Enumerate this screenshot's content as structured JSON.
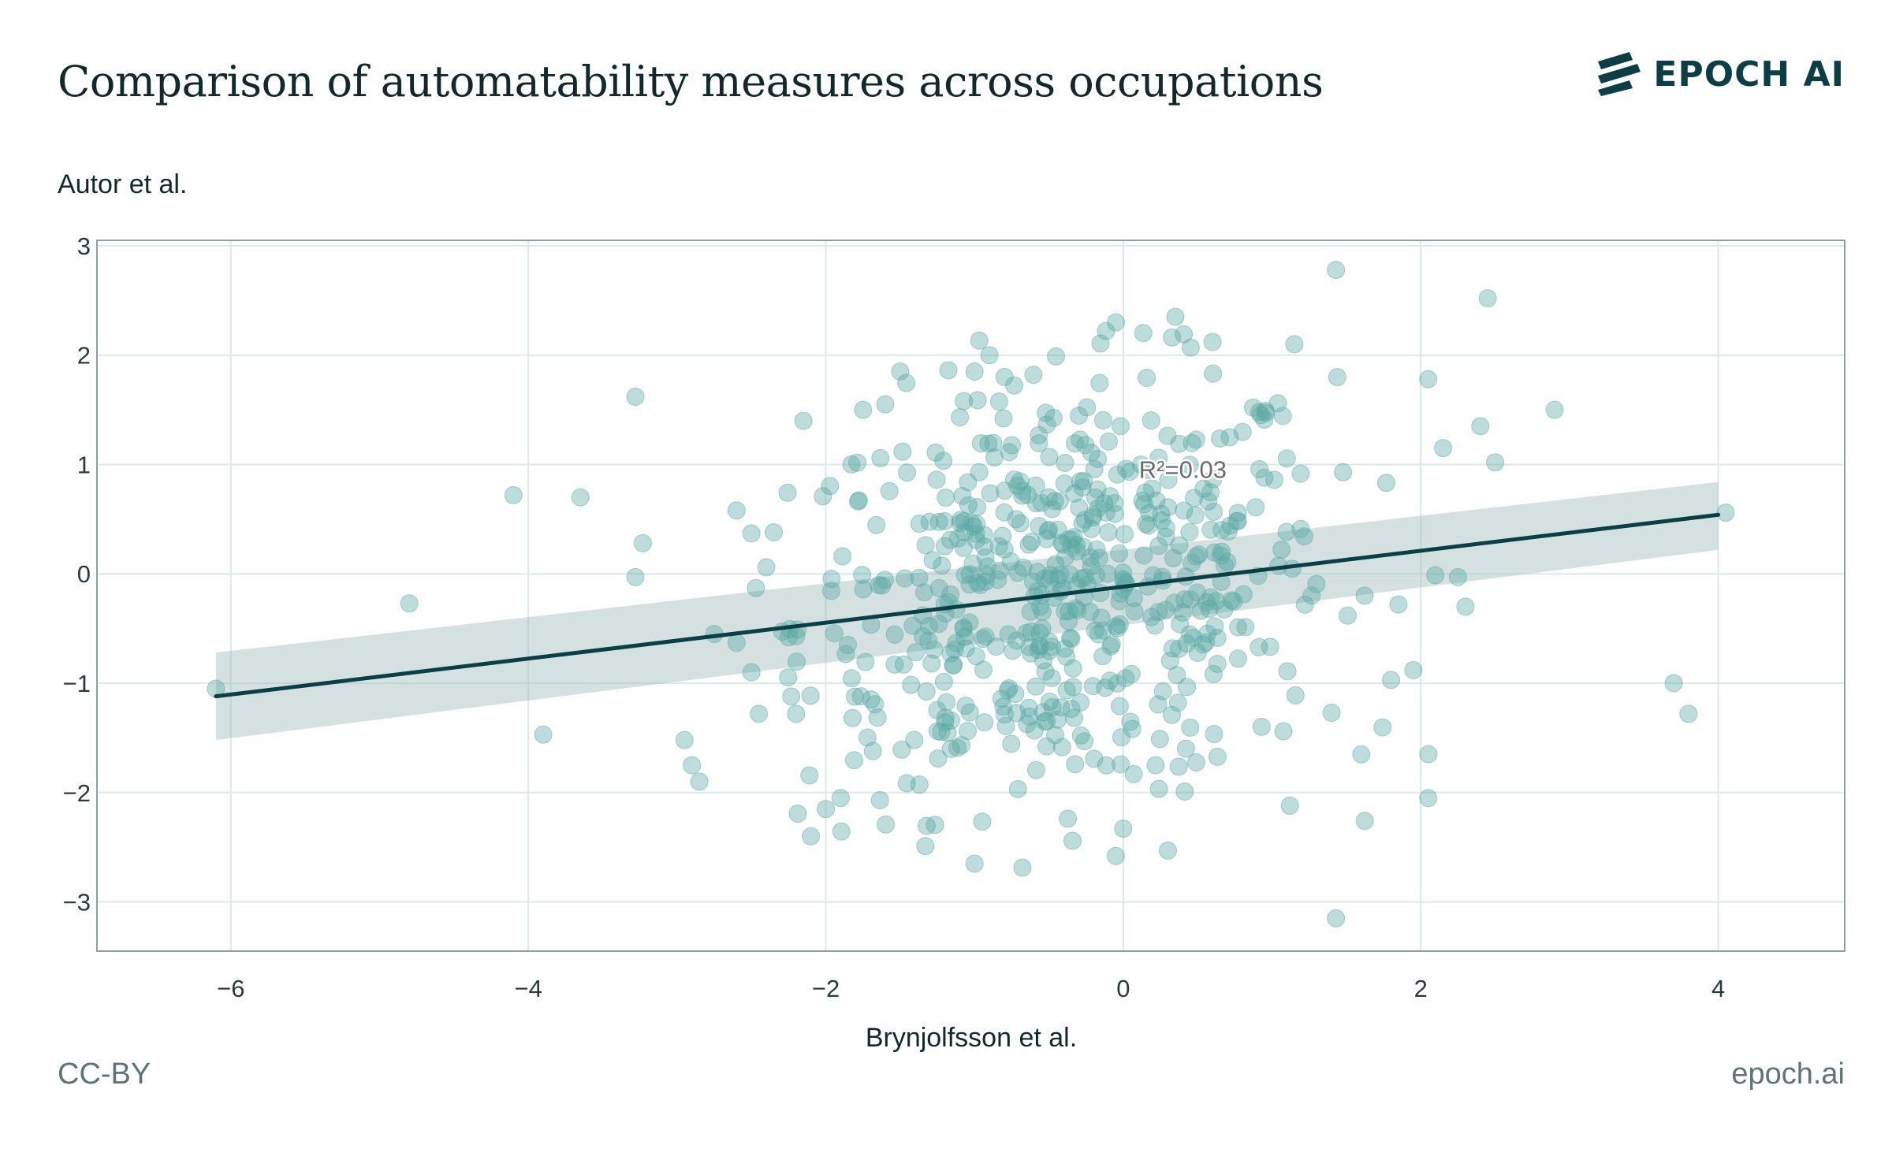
{
  "header": {
    "title": "Comparison of automatability measures across occupations",
    "brand": "EPOCH AI"
  },
  "footer": {
    "license": "CC-BY",
    "site": "epoch.ai"
  },
  "colors": {
    "point": "#5aa8a4",
    "line": "#0b3f47",
    "band": "#9fbcbb",
    "grid": "#dbe9e8",
    "frame": "#8aa2a6"
  },
  "chart_data": {
    "type": "scatter",
    "title": "Comparison of automatability measures across occupations",
    "xlabel": "Brynjolfsson et al.",
    "ylabel": "Autor et al.",
    "xlim": [
      -6.9,
      4.85
    ],
    "ylim": [
      -3.45,
      3.05
    ],
    "xticks": [
      -6,
      -4,
      -2,
      0,
      2,
      4
    ],
    "yticks": [
      -3,
      -2,
      -1,
      0,
      1,
      2,
      3
    ],
    "xtick_labels": [
      "−6",
      "−4",
      "−2",
      "0",
      "2",
      "4"
    ],
    "ytick_labels": [
      "−3",
      "−2",
      "−1",
      "0",
      "1",
      "2",
      "3"
    ],
    "grid": true,
    "annotation": {
      "text": "R²=0.03",
      "x": 0.4,
      "y": 0.95
    },
    "regression": {
      "x": [
        -6.1,
        4.0
      ],
      "y": [
        -1.12,
        0.54
      ],
      "band_upper": [
        -0.72,
        0.84
      ],
      "band_lower": [
        -1.52,
        0.22
      ]
    },
    "outliers": [
      [
        -6.1,
        -1.05
      ],
      [
        -4.8,
        -0.27
      ],
      [
        -4.1,
        0.72
      ],
      [
        -3.65,
        0.7
      ],
      [
        -3.9,
        -1.47
      ],
      [
        -3.28,
        1.62
      ],
      [
        -3.23,
        0.28
      ],
      [
        -3.28,
        -0.03
      ],
      [
        -2.95,
        -1.52
      ],
      [
        -2.9,
        -1.75
      ],
      [
        -2.85,
        -1.9
      ],
      [
        -2.75,
        -0.55
      ],
      [
        -2.6,
        0.58
      ],
      [
        -2.6,
        -0.63
      ],
      [
        -2.5,
        0.37
      ],
      [
        -2.5,
        -0.9
      ],
      [
        -2.47,
        -0.13
      ],
      [
        -2.45,
        -1.28
      ],
      [
        -2.4,
        0.06
      ],
      [
        -2.35,
        0.38
      ],
      [
        -2.25,
        -0.58
      ],
      [
        -2.2,
        -0.57
      ],
      [
        -2.2,
        -1.28
      ],
      [
        -2.15,
        1.4
      ],
      [
        -2.1,
        -2.4
      ],
      [
        -2.0,
        -2.15
      ],
      [
        -1.9,
        -2.05
      ],
      [
        -1.75,
        1.5
      ],
      [
        -1.6,
        1.55
      ],
      [
        -1.5,
        1.85
      ],
      [
        -1.0,
        1.85
      ],
      [
        -0.9,
        2.0
      ],
      [
        -0.05,
        2.3
      ],
      [
        0.35,
        2.35
      ],
      [
        0.6,
        2.12
      ],
      [
        1.43,
        2.78
      ],
      [
        2.45,
        2.52
      ],
      [
        2.9,
        1.5
      ],
      [
        2.4,
        1.35
      ],
      [
        2.5,
        1.02
      ],
      [
        1.15,
        2.1
      ],
      [
        2.05,
        1.78
      ],
      [
        2.15,
        1.15
      ],
      [
        2.25,
        -0.03
      ],
      [
        2.3,
        -0.3
      ],
      [
        3.7,
        -1.0
      ],
      [
        3.8,
        -1.28
      ],
      [
        4.05,
        0.56
      ],
      [
        1.43,
        -3.15
      ],
      [
        2.05,
        -2.05
      ],
      [
        1.95,
        -0.88
      ],
      [
        1.6,
        -1.65
      ],
      [
        1.12,
        -2.12
      ],
      [
        -1.0,
        -2.65
      ],
      [
        -0.05,
        -2.58
      ],
      [
        0.3,
        -2.53
      ],
      [
        0.0,
        -2.33
      ],
      [
        1.4,
        -1.27
      ],
      [
        1.8,
        -0.97
      ],
      [
        1.85,
        -0.28
      ]
    ],
    "cluster": {
      "count": 560,
      "x_center": -0.4,
      "y_center": -0.15,
      "x_sd": 0.9,
      "y_sd": 0.95,
      "r_squared": 0.03
    }
  }
}
